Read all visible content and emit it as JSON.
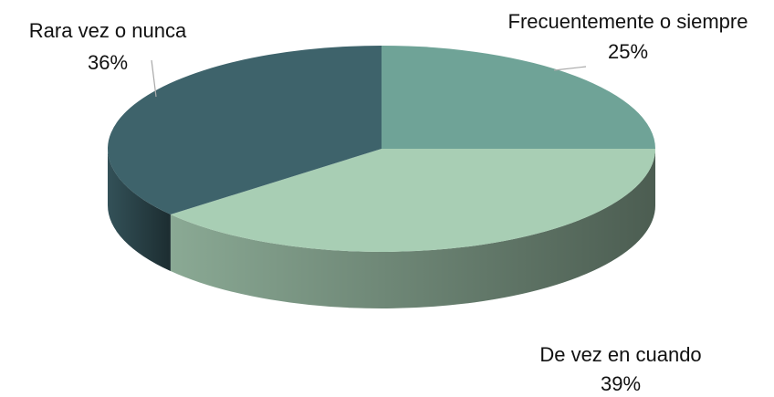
{
  "chart_data": {
    "type": "pie",
    "categories": [
      "Frecuentemente o siempre",
      "De vez en cuando",
      "Rara vez o nunca"
    ],
    "values": [
      25,
      39,
      36
    ],
    "value_labels": [
      "25%",
      "39%",
      "36%"
    ],
    "colors": [
      "#6fa397",
      "#a8ceb4",
      "#3e636b"
    ]
  }
}
